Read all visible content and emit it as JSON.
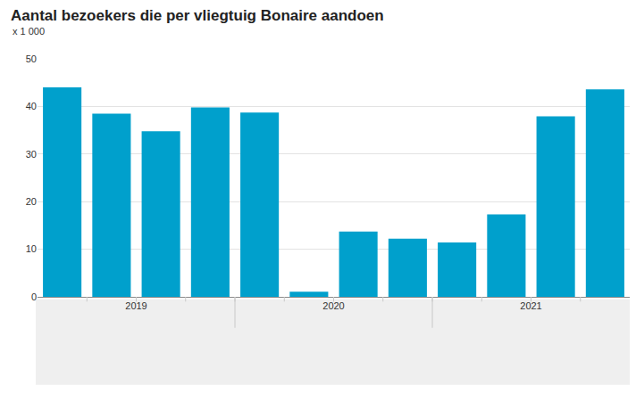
{
  "chart_data": {
    "type": "bar",
    "title": "Aantal bezoekers die per vliegtuig Bonaire aandoen",
    "subtitle": "x 1 000",
    "categories": [
      "2019",
      null,
      null,
      null,
      "2020",
      null,
      null,
      null,
      "2021",
      null,
      null,
      null
    ],
    "values": [
      44.0,
      38.5,
      34.8,
      39.8,
      38.7,
      1.1,
      13.7,
      12.2,
      11.4,
      17.3,
      37.9,
      43.6
    ],
    "color": "#00a0cc",
    "ylim": [
      0,
      50
    ],
    "yticks": [
      0,
      10,
      20,
      30,
      40,
      50
    ],
    "grid": true
  }
}
